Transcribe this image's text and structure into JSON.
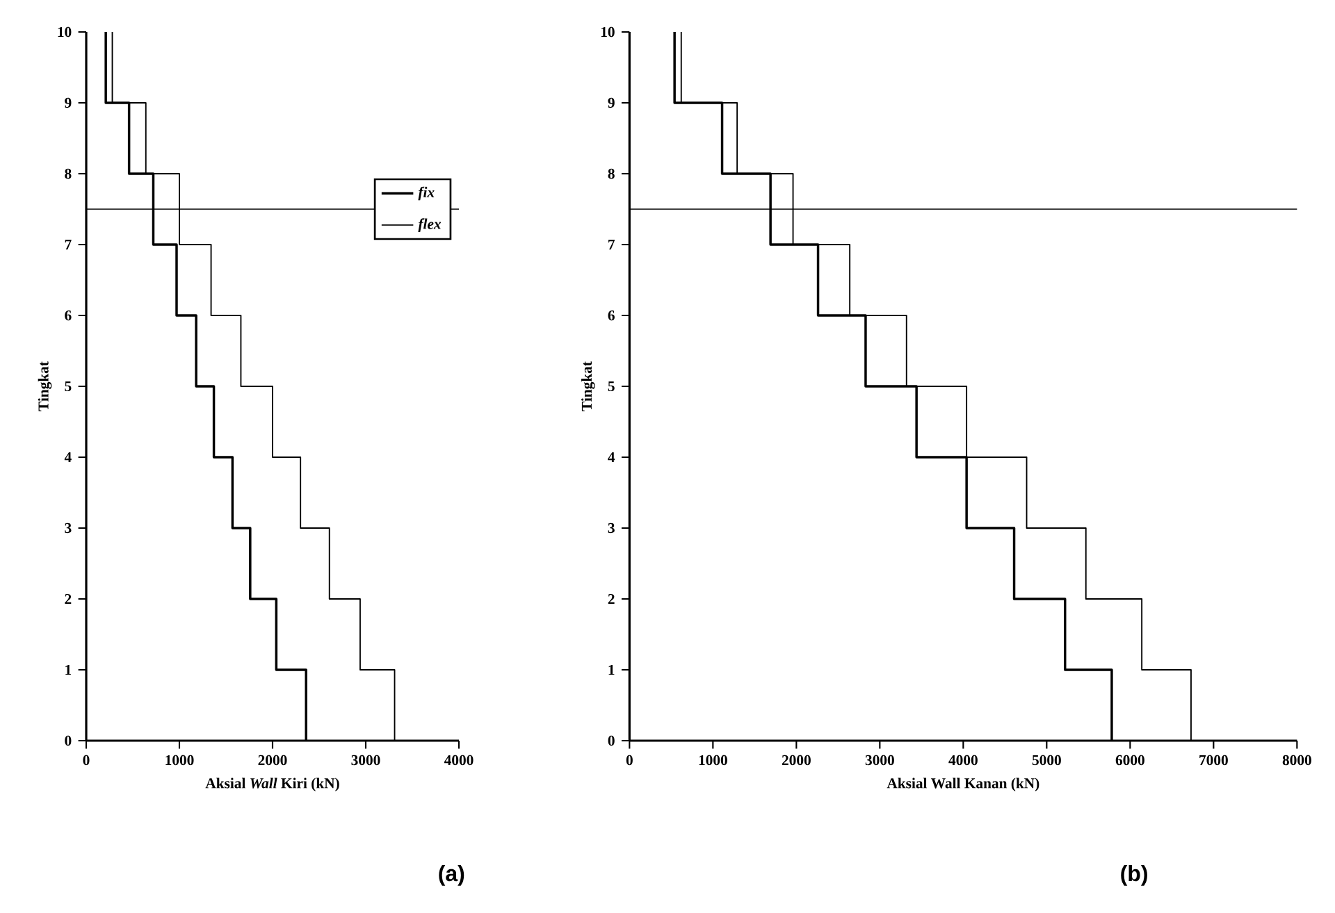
{
  "chart_data": [
    {
      "type": "line",
      "xlabel": "Aksial *Wall* Kiri (kN)",
      "ylabel": "Tingkat",
      "xlim": [
        0,
        4000
      ],
      "xticks": [
        0,
        1000,
        2000,
        3000,
        4000
      ],
      "ylim": [
        0,
        10
      ],
      "yticks": [
        0,
        1,
        2,
        3,
        4,
        5,
        6,
        7,
        8,
        9,
        10
      ],
      "legend": "right",
      "grid": false,
      "marker": "none",
      "line_style": "solid",
      "series": [
        {
          "name": "fix",
          "color": "#000000",
          "x": [
            210,
            210,
            460,
            460,
            720,
            720,
            970,
            970,
            1180,
            1180,
            1370,
            1370,
            1570,
            1570,
            1760,
            1760,
            2040,
            2040,
            2360,
            2360
          ],
          "values": [
            10,
            9,
            9,
            8,
            8,
            7,
            7,
            6,
            6,
            5,
            5,
            4,
            4,
            3,
            3,
            2,
            2,
            1,
            1,
            0
          ]
        },
        {
          "name": "flex",
          "color": "#000000",
          "x": [
            280,
            280,
            640,
            640,
            1000,
            1000,
            1340,
            1340,
            1660,
            1660,
            2000,
            2000,
            2300,
            2300,
            2610,
            2610,
            2940,
            2940,
            3310,
            3310
          ],
          "values": [
            10,
            9,
            9,
            8,
            8,
            7,
            7,
            6,
            6,
            5,
            5,
            4,
            4,
            3,
            3,
            2,
            2,
            1,
            1,
            0
          ]
        }
      ],
      "ref_lines": [
        {
          "axis": "y",
          "value": 7.5
        }
      ],
      "annotations": [
        "(a)"
      ]
    },
    {
      "type": "line",
      "xlabel": "Aksial Wall Kanan (kN)",
      "ylabel": "Tingkat",
      "xlim": [
        0,
        8000
      ],
      "xticks": [
        0,
        1000,
        2000,
        3000,
        4000,
        5000,
        6000,
        7000,
        8000
      ],
      "ylim": [
        0,
        10
      ],
      "yticks": [
        0,
        1,
        2,
        3,
        4,
        5,
        6,
        7,
        8,
        9,
        10
      ],
      "grid": false,
      "marker": "none",
      "line_style": "solid",
      "series": [
        {
          "color": "#000000",
          "x": [
            540,
            540,
            1110,
            1110,
            1690,
            1690,
            2260,
            2260,
            2830,
            2830,
            3440,
            3440,
            4040,
            4040,
            4610,
            4610,
            5220,
            5220,
            5780,
            5780
          ],
          "values": [
            10,
            9,
            9,
            8,
            8,
            7,
            7,
            6,
            6,
            5,
            5,
            4,
            4,
            3,
            3,
            2,
            2,
            1,
            1,
            0
          ]
        },
        {
          "color": "#000000",
          "x": [
            620,
            620,
            1290,
            1290,
            1960,
            1960,
            2640,
            2640,
            3320,
            3320,
            4040,
            4040,
            4760,
            4760,
            5470,
            5470,
            6140,
            6140,
            6730,
            6730
          ],
          "values": [
            10,
            9,
            9,
            8,
            8,
            7,
            7,
            6,
            6,
            5,
            5,
            4,
            4,
            3,
            3,
            2,
            2,
            1,
            1,
            0
          ]
        }
      ],
      "ref_lines": [
        {
          "axis": "y",
          "value": 7.5
        }
      ],
      "annotations": [
        "(b)"
      ]
    }
  ]
}
